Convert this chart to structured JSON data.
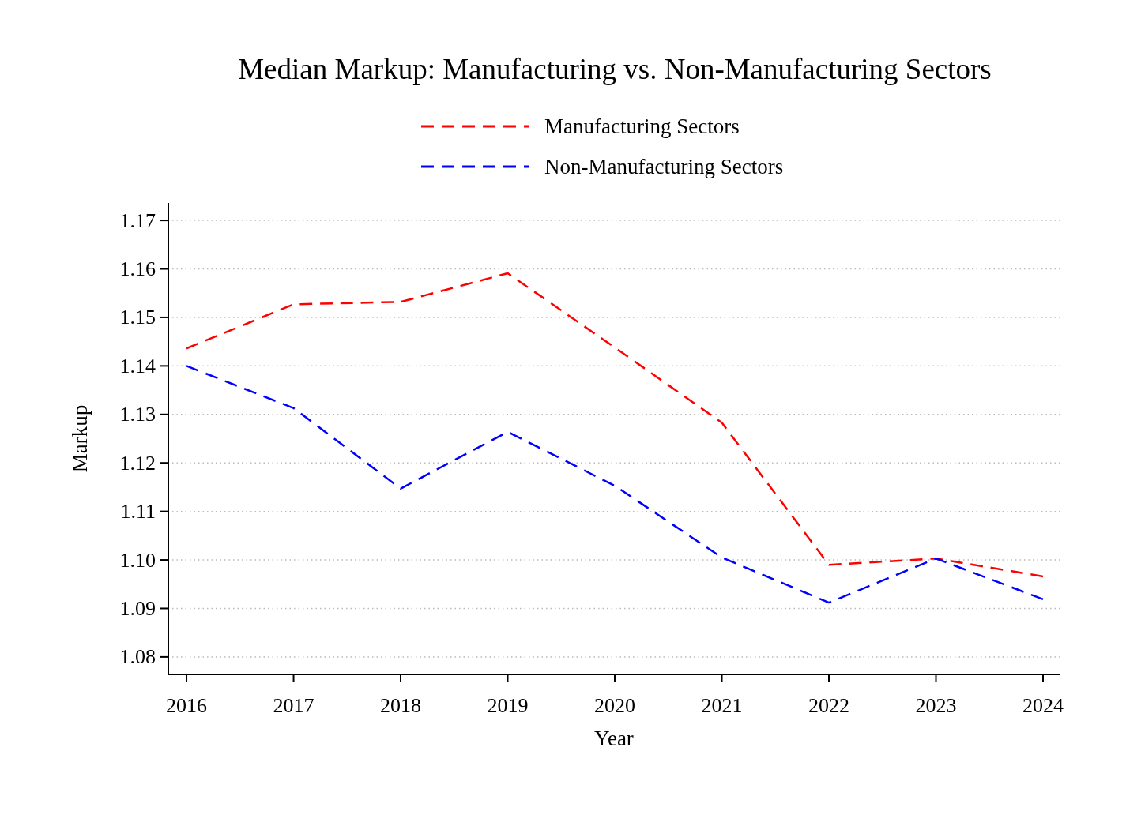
{
  "chart_data": {
    "type": "line",
    "title": "Median Markup: Manufacturing vs. Non-Manufacturing Sectors",
    "xlabel": "Year",
    "ylabel": "Markup",
    "x": [
      2016,
      2017,
      2018,
      2019,
      2020,
      2021,
      2022,
      2023,
      2024
    ],
    "series": [
      {
        "name": "Manufacturing Sectors",
        "color": "#ff0000",
        "values": [
          1.1436,
          1.1527,
          1.1532,
          1.1591,
          1.1438,
          1.1283,
          1.099,
          1.1003,
          1.0966
        ]
      },
      {
        "name": "Non-Manufacturing Sectors",
        "color": "#0000ff",
        "values": [
          1.14,
          1.1313,
          1.1147,
          1.1264,
          1.1153,
          1.1005,
          1.0912,
          1.1003,
          1.0919
        ]
      }
    ],
    "xlim": [
      2015.83,
      2024.155
    ],
    "xticks": [
      2016,
      2017,
      2018,
      2019,
      2020,
      2021,
      2022,
      2023,
      2024
    ],
    "ylim": [
      1.0764,
      1.1736
    ],
    "yticks": [
      1.08,
      1.09,
      {
        "value": 1.1,
        "label": "1.10"
      },
      1.11,
      1.12,
      1.13,
      1.14,
      1.15,
      1.16,
      1.17
    ],
    "grid": "y",
    "legend": "top",
    "line_style": "dashed",
    "marker": "none"
  }
}
